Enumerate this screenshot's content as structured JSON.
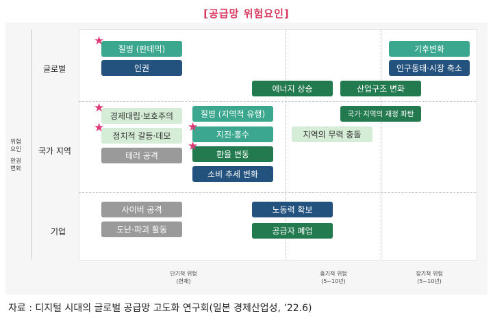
{
  "title": "[공급망 위험요인]",
  "y_axis": {
    "title_lines": [
      "위험",
      "요인",
      "",
      "환경",
      "변화"
    ],
    "rows": [
      "글로벌",
      "국가 지역",
      "기업"
    ]
  },
  "x_axis": {
    "categories": [
      {
        "line1": "단기적 위험",
        "line2": "(현재)"
      },
      {
        "line1": "중기적 위험",
        "line2": "(5~10년)"
      },
      {
        "line1": "장기적 위험",
        "line2": "(5~10년)"
      }
    ]
  },
  "items": [
    {
      "label": "질병 (판데믹)",
      "style": "teal",
      "row": "글로벌",
      "star": true
    },
    {
      "label": "인권",
      "style": "navy",
      "row": "글로벌",
      "star": false
    },
    {
      "label": "기후변화",
      "style": "teal",
      "row": "글로벌",
      "star": false
    },
    {
      "label": "인구동태·시장 축소",
      "style": "navy",
      "row": "글로벌",
      "star": false
    },
    {
      "label": "에너지 상승",
      "style": "green",
      "row": "글로벌",
      "star": false
    },
    {
      "label": "산업구조 변화",
      "style": "green",
      "row": "글로벌",
      "star": false
    },
    {
      "label": "경제대립·보호주의",
      "style": "light",
      "row": "국가 지역",
      "star": true
    },
    {
      "label": "정치적 갈등·데모",
      "style": "light",
      "row": "국가 지역",
      "star": true
    },
    {
      "label": "테러 공격",
      "style": "gray",
      "row": "국가 지역",
      "star": false
    },
    {
      "label": "질병 (지역적 유행)",
      "style": "teal",
      "row": "국가 지역",
      "star": false
    },
    {
      "label": "지진·홍수",
      "style": "teal",
      "row": "국가 지역",
      "star": true
    },
    {
      "label": "환율 변동",
      "style": "green",
      "row": "국가 지역",
      "star": true
    },
    {
      "label": "소비 추세 변화",
      "style": "navy",
      "row": "국가 지역",
      "star": false
    },
    {
      "label": "국가·지역의 재정 파탄",
      "style": "green",
      "row": "국가 지역",
      "star": false
    },
    {
      "label": "지역의 무력 충돌",
      "style": "light",
      "row": "국가 지역",
      "star": false
    },
    {
      "label": "사이버 공격",
      "style": "gray",
      "row": "기업",
      "star": false
    },
    {
      "label": "도난·파괴 활동",
      "style": "gray",
      "row": "기업",
      "star": false
    },
    {
      "label": "노동력 확보",
      "style": "navy",
      "row": "기업",
      "star": false
    },
    {
      "label": "공급자 폐업",
      "style": "green",
      "row": "기업",
      "star": false
    }
  ],
  "star_symbol": "★",
  "colors": {
    "teal": "#3aa78e",
    "navy": "#24527e",
    "green": "#237a4f",
    "light": "#d5ecd6",
    "gray": "#9a9a9a",
    "accent": "#d9365e"
  },
  "source": "자료 : 디지털 시대의 글로벌 공급망 고도화 연구회(일본 경제산업성, ’22.6)"
}
